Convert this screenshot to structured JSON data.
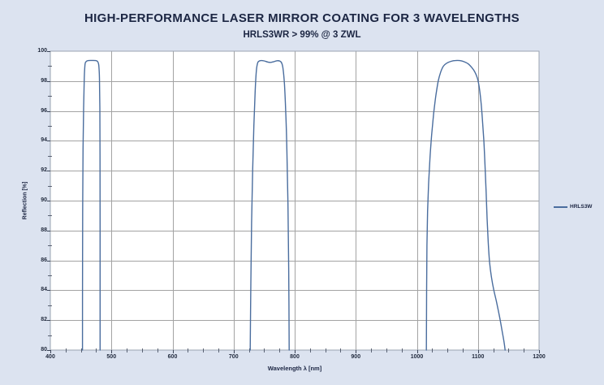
{
  "header": {
    "title": "HIGH-PERFORMANCE LASER MIRROR COATING FOR 3 WAVELENGTHS",
    "subtitle": "HRLS3WR > 99% @ 3 ZWL"
  },
  "legend": {
    "label": "HRLS3W"
  },
  "chart_data": {
    "type": "line",
    "title": "HIGH-PERFORMANCE LASER MIRROR COATING FOR 3 WAVELENGTHS",
    "subtitle": "HRLS3WR > 99% @ 3 ZWL",
    "xlabel": "Wavelength λ [nm]",
    "ylabel": "Reflection [%]",
    "xlim": [
      400,
      1200
    ],
    "ylim": [
      80,
      100
    ],
    "x_major_ticks": [
      400,
      500,
      600,
      700,
      800,
      900,
      1000,
      1100,
      1200
    ],
    "x_minor_step": 25,
    "y_major_ticks": [
      80,
      82,
      84,
      86,
      88,
      90,
      92,
      94,
      96,
      98,
      100
    ],
    "y_minor_step": 1,
    "grid": "major",
    "legend_position": "right-center",
    "colors": {
      "background": "#dce3f0",
      "plot_background": "#ffffff",
      "grid": "#a3a3a3",
      "border": "#9aa3b0",
      "tick": "#3a4356",
      "text": "#1c2643"
    },
    "series": [
      {
        "name": "HRLS3W",
        "color": "#4a6d9e",
        "description": "Reflectance bands >99% centered near 468 nm, 760 nm and 1070 nm",
        "segments": [
          [
            [
              452.6,
              80
            ],
            [
              452.7,
              86
            ],
            [
              453.0,
              90
            ],
            [
              453.6,
              93.5
            ],
            [
              454.5,
              96.2
            ],
            [
              455.6,
              98.2
            ],
            [
              456.8,
              99.1
            ],
            [
              458.5,
              99.3
            ],
            [
              462,
              99.37
            ],
            [
              468,
              99.38
            ],
            [
              474,
              99.37
            ],
            [
              477.5,
              99.3
            ],
            [
              479.3,
              99.05
            ],
            [
              480.4,
              98.2
            ],
            [
              481.0,
              96.2
            ],
            [
              481.3,
              93
            ],
            [
              481.45,
              88
            ],
            [
              481.5,
              80
            ]
          ],
          [
            [
              727.2,
              80
            ],
            [
              728.2,
              84.5
            ],
            [
              729.5,
              88.5
            ],
            [
              731.2,
              92
            ],
            [
              733.2,
              95
            ],
            [
              735.3,
              97.3
            ],
            [
              737.3,
              98.7
            ],
            [
              739.3,
              99.2
            ],
            [
              741.5,
              99.33
            ],
            [
              745,
              99.37
            ],
            [
              750,
              99.35
            ],
            [
              756,
              99.27
            ],
            [
              761,
              99.25
            ],
            [
              766,
              99.3
            ],
            [
              771,
              99.36
            ],
            [
              776,
              99.33
            ],
            [
              778.8,
              99.2
            ],
            [
              781,
              98.8
            ],
            [
              783.2,
              97.8
            ],
            [
              785.3,
              96
            ],
            [
              787.3,
              93.3
            ],
            [
              789.0,
              89.8
            ],
            [
              790.2,
              85.5
            ],
            [
              791.0,
              80
            ]
          ],
          [
            [
              1015.6,
              80
            ],
            [
              1015.9,
              84
            ],
            [
              1016.5,
              87
            ],
            [
              1017.6,
              89.3
            ],
            [
              1019.3,
              91.2
            ],
            [
              1021.5,
              92.9
            ],
            [
              1024.2,
              94.4
            ],
            [
              1027.4,
              95.8
            ],
            [
              1031,
              97.0
            ],
            [
              1035,
              98.0
            ],
            [
              1039,
              98.6
            ],
            [
              1043.5,
              99.0
            ],
            [
              1049,
              99.2
            ],
            [
              1056,
              99.32
            ],
            [
              1063,
              99.37
            ],
            [
              1070,
              99.37
            ],
            [
              1077,
              99.3
            ],
            [
              1084,
              99.15
            ],
            [
              1090,
              98.9
            ],
            [
              1095,
              98.6
            ],
            [
              1099,
              98.2
            ],
            [
              1102,
              97.6
            ],
            [
              1104.5,
              96.8
            ],
            [
              1107,
              95.6
            ],
            [
              1109.5,
              94.1
            ],
            [
              1111.5,
              92.4
            ],
            [
              1113.3,
              90.6
            ],
            [
              1115,
              88.8
            ],
            [
              1116.8,
              87.2
            ],
            [
              1119,
              85.9
            ],
            [
              1122,
              84.9
            ],
            [
              1126,
              84.0
            ],
            [
              1130.5,
              83.2
            ],
            [
              1135,
              82.3
            ],
            [
              1139,
              81.4
            ],
            [
              1142.5,
              80.6
            ],
            [
              1144.5,
              80
            ]
          ]
        ]
      }
    ]
  }
}
